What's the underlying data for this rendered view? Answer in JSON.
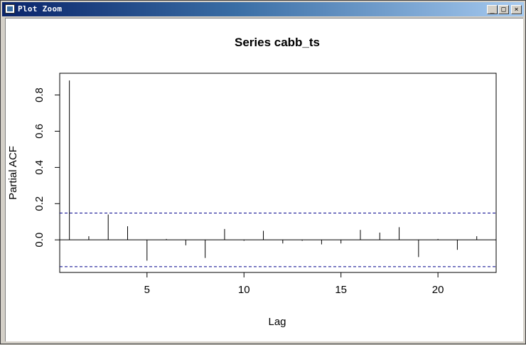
{
  "window": {
    "title": "Plot Zoom",
    "controls": {
      "minimize": "_",
      "maximize": "□",
      "close": "×"
    }
  },
  "chart_data": {
    "type": "bar",
    "title": "Series  cabb_ts",
    "xlabel": "Lag",
    "ylabel": "Partial ACF",
    "xlim": [
      0.5,
      23
    ],
    "ylim": [
      -0.18,
      0.92
    ],
    "x_ticks": [
      5,
      10,
      15,
      20
    ],
    "y_ticks": [
      0.0,
      0.2,
      0.4,
      0.6,
      0.8
    ],
    "y_tick_labels": [
      "0.0",
      "0.2",
      "0.4",
      "0.6",
      "0.8"
    ],
    "x": [
      1,
      2,
      3,
      4,
      5,
      6,
      7,
      8,
      9,
      10,
      11,
      12,
      13,
      14,
      15,
      16,
      17,
      18,
      19,
      20,
      21,
      22
    ],
    "values": [
      0.88,
      0.02,
      0.14,
      0.075,
      -0.115,
      0.005,
      -0.03,
      -0.1,
      0.06,
      -0.005,
      0.05,
      -0.02,
      -0.005,
      -0.025,
      -0.02,
      0.055,
      0.04,
      0.07,
      -0.095,
      0.005,
      -0.055,
      0.02
    ],
    "confidence_bound": 0.148,
    "confidence_color": "#00008b",
    "grid": false
  }
}
